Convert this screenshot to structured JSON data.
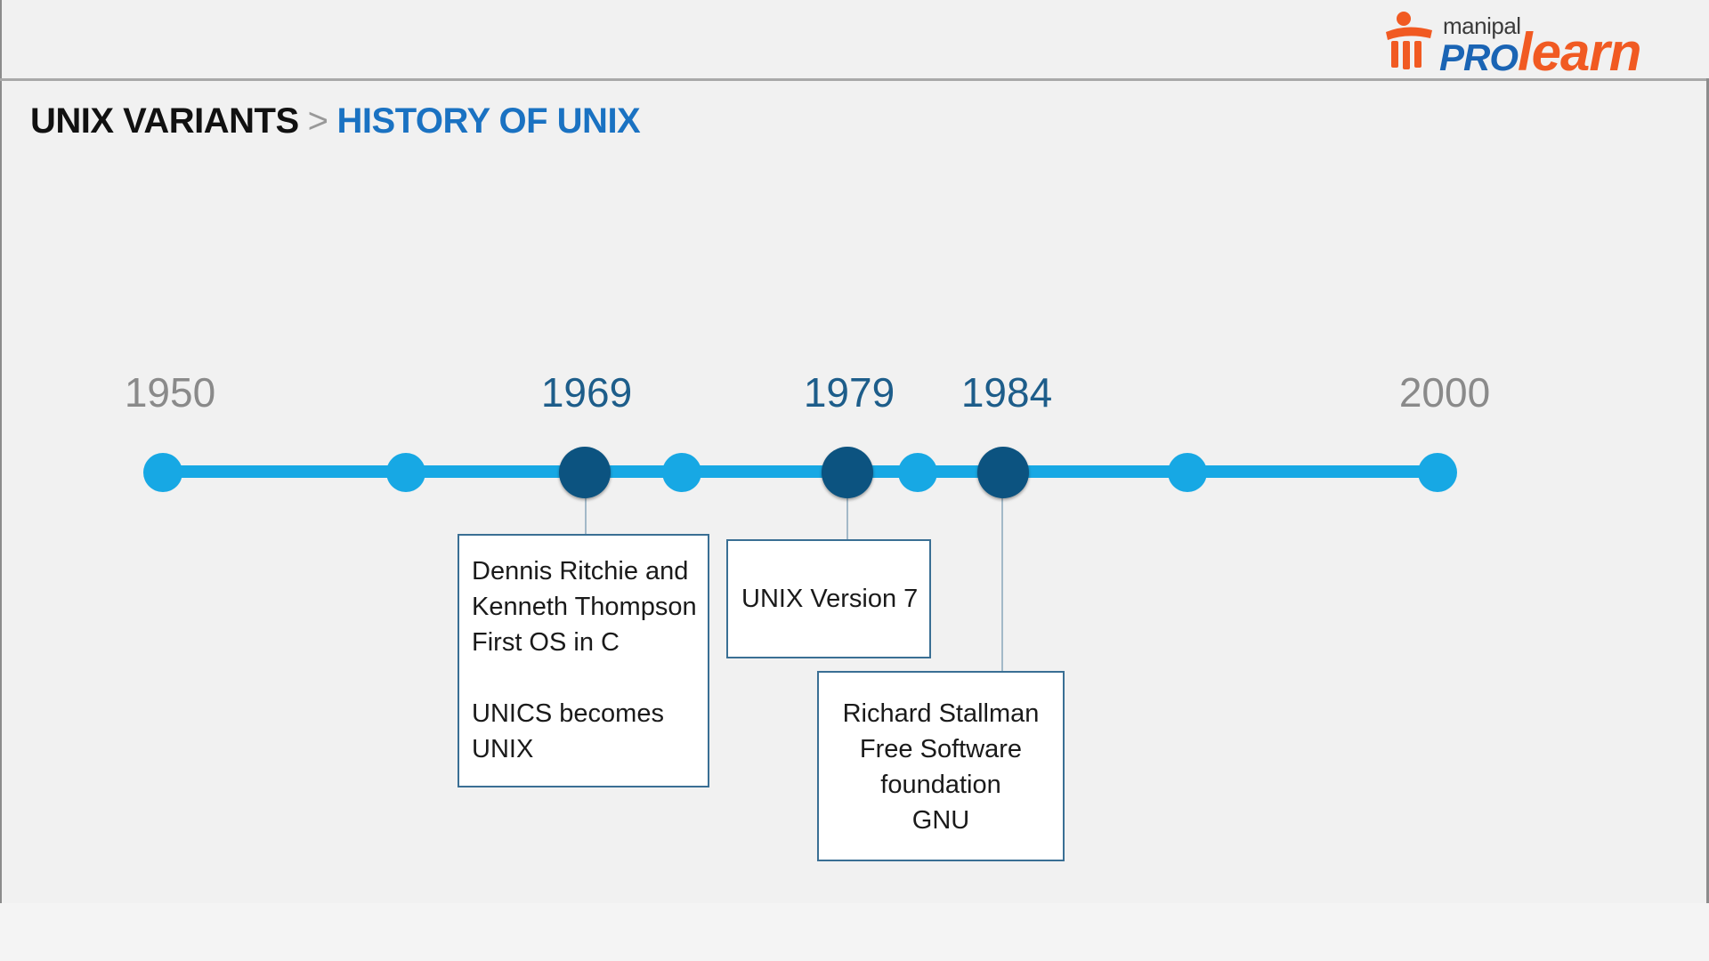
{
  "logo": {
    "small_text": "manipal",
    "pro_text": "PRO",
    "learn_text": "learn",
    "colors": {
      "pro": "#1a64b4",
      "learn": "#f15a22",
      "small": "#3b3b3b"
    }
  },
  "breadcrumb": {
    "section": "UNIX VARIANTS",
    "separator": ">",
    "page": "HISTORY OF UNIX"
  },
  "timeline": {
    "years": {
      "start": "1950",
      "y1969": "1969",
      "y1979": "1979",
      "y1984": "1984",
      "end": "2000"
    },
    "callouts": {
      "c1969": {
        "line1": "Dennis Ritchie and",
        "line2": "Kenneth Thompson",
        "line3": "First OS in C",
        "line4": "UNICS becomes",
        "line5": "UNIX"
      },
      "c1979": {
        "line1": "UNIX Version 7"
      },
      "c1984": {
        "line1": "Richard Stallman",
        "line2": "Free Software",
        "line3": "foundation",
        "line4": "GNU"
      }
    },
    "colors": {
      "track": "#17a8e4",
      "major_dot": "#0c5380",
      "major_year": "#1d5d8a",
      "minor_year": "#8a8a8a"
    }
  }
}
